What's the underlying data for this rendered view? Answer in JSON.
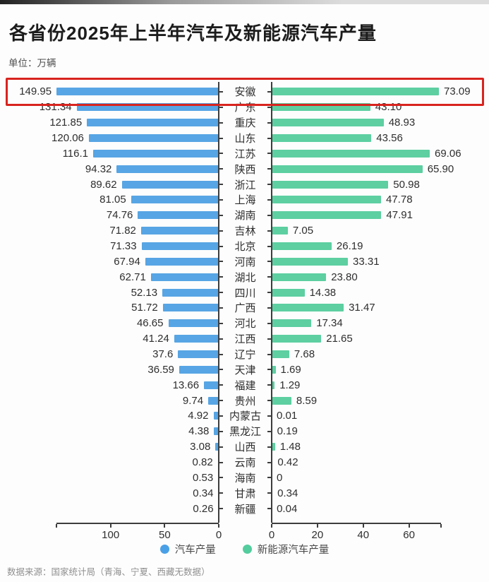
{
  "header": {
    "title": "各省份2025年上半年汽车及新能源汽车产量",
    "unit": "单位：万辆"
  },
  "chart_data": {
    "type": "bar",
    "orientation": "horizontal-diverging",
    "unit": "万辆",
    "categories": [
      "安徽",
      "广东",
      "重庆",
      "山东",
      "江苏",
      "陕西",
      "浙江",
      "上海",
      "湖南",
      "吉林",
      "北京",
      "河南",
      "湖北",
      "四川",
      "广西",
      "河北",
      "江西",
      "辽宁",
      "天津",
      "福建",
      "贵州",
      "内蒙古",
      "黑龙江",
      "山西",
      "云南",
      "海南",
      "甘肃",
      "新疆"
    ],
    "series": [
      {
        "name": "汽车产量",
        "side": "left",
        "color": "#57a5e4",
        "values": [
          149.95,
          131.34,
          121.85,
          120.06,
          116.1,
          94.32,
          89.62,
          81.05,
          74.76,
          71.82,
          71.33,
          67.94,
          62.71,
          52.13,
          51.72,
          46.65,
          41.24,
          37.6,
          36.59,
          13.66,
          9.74,
          4.92,
          4.38,
          3.08,
          0.82,
          0.53,
          0.34,
          0.26
        ],
        "labels": [
          "149.95",
          "131.34",
          "121.85",
          "120.06",
          "116.1",
          "94.32",
          "89.62",
          "81.05",
          "74.76",
          "71.82",
          "71.33",
          "67.94",
          "62.71",
          "52.13",
          "51.72",
          "46.65",
          "41.24",
          "37.6",
          "36.59",
          "13.66",
          "9.74",
          "4.92",
          "4.38",
          "3.08",
          "0.82",
          "0.53",
          "0.34",
          "0.26"
        ]
      },
      {
        "name": "新能源汽车产量",
        "side": "right",
        "color": "#5dcfa1",
        "values": [
          73.09,
          43.1,
          48.93,
          43.56,
          69.06,
          65.9,
          50.98,
          47.78,
          47.91,
          7.05,
          26.19,
          33.31,
          23.8,
          14.38,
          31.47,
          17.34,
          21.65,
          7.68,
          1.69,
          1.29,
          8.59,
          0.01,
          0.19,
          1.48,
          0.42,
          0,
          0.34,
          0.04
        ],
        "labels": [
          "73.09",
          "43.10",
          "48.93",
          "43.56",
          "69.06",
          "65.90",
          "50.98",
          "47.78",
          "47.91",
          "7.05",
          "26.19",
          "33.31",
          "23.80",
          "14.38",
          "31.47",
          "17.34",
          "21.65",
          "7.68",
          "1.69",
          "1.29",
          "8.59",
          "0.01",
          "0.19",
          "1.48",
          "0.42",
          "0",
          "0.34",
          "0.04"
        ]
      }
    ],
    "left_axis": {
      "ticks": [
        100,
        50,
        0
      ],
      "max": 150
    },
    "right_axis": {
      "ticks": [
        0,
        20,
        40,
        60
      ],
      "max": 74
    },
    "highlight_row": "安徽",
    "highlight_color": "#d8241f",
    "grid": false,
    "legend_position": "bottom"
  },
  "legend": {
    "items": [
      {
        "label": "汽车产量",
        "color": "#4aa0e6"
      },
      {
        "label": "新能源汽车产量",
        "color": "#53cd9e"
      }
    ]
  },
  "footer": {
    "source": "数据来源：国家统计局（青海、宁夏、西藏无数据）"
  }
}
